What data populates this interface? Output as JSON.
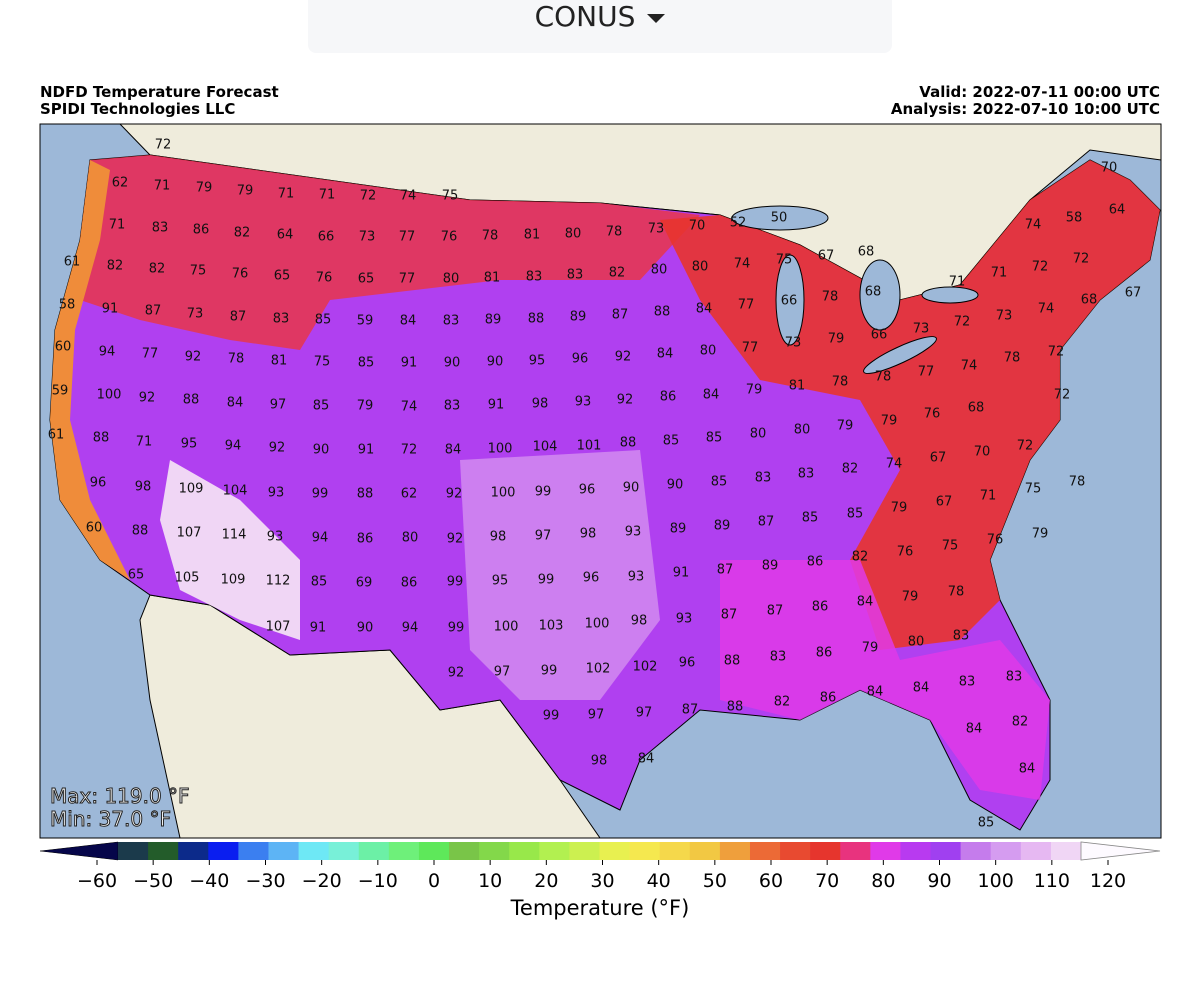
{
  "selector": {
    "label": "CONUS"
  },
  "header": {
    "title": "NDFD Temperature Forecast",
    "source": "SPIDI Technologies LLC",
    "valid": "Valid: 2022-07-11 00:00 UTC",
    "analysis": "Analysis: 2022-07-10 10:00 UTC"
  },
  "stats": {
    "max": "Max: 119.0 °F",
    "min": "Min: 37.0 °F"
  },
  "stations": [
    72,
    62,
    71,
    79,
    79,
    71,
    71,
    72,
    74,
    75,
    71,
    83,
    86,
    82,
    64,
    66,
    73,
    77,
    76,
    78,
    81,
    80,
    78,
    73,
    70,
    52,
    50,
    61,
    82,
    82,
    75,
    76,
    65,
    76,
    65,
    77,
    80,
    81,
    83,
    83,
    82,
    80,
    80,
    74,
    75,
    67,
    68,
    58,
    91,
    87,
    73,
    87,
    83,
    85,
    59,
    84,
    83,
    89,
    88,
    89,
    87,
    88,
    84,
    77,
    66,
    78,
    68,
    60,
    94,
    77,
    92,
    78,
    81,
    75,
    85,
    91,
    90,
    90,
    95,
    96,
    92,
    84,
    80,
    77,
    73,
    79,
    66,
    73,
    59,
    100,
    92,
    88,
    84,
    97,
    85,
    79,
    74,
    83,
    91,
    98,
    93,
    92,
    86,
    84,
    79,
    81,
    78,
    78,
    77,
    74,
    78,
    61,
    88,
    71,
    95,
    94,
    92,
    90,
    91,
    72,
    84,
    100,
    104,
    101,
    88,
    85,
    85,
    80,
    80,
    79,
    79,
    76,
    68,
    72,
    96,
    98,
    109,
    104,
    93,
    99,
    88,
    62,
    92,
    100,
    99,
    96,
    90,
    90,
    85,
    83,
    83,
    82,
    74,
    67,
    70,
    72,
    60,
    88,
    107,
    114,
    93,
    94,
    86,
    80,
    92,
    98,
    97,
    98,
    93,
    89,
    89,
    87,
    85,
    85,
    79,
    67,
    71,
    75,
    78,
    65,
    105,
    109,
    112,
    85,
    69,
    86,
    99,
    95,
    99,
    96,
    93,
    91,
    87,
    89,
    86,
    82,
    76,
    75,
    76,
    79,
    107,
    91,
    90,
    94,
    99,
    100,
    103,
    100,
    98,
    93,
    87,
    87,
    86,
    84,
    79,
    78,
    92,
    97,
    99,
    102,
    102,
    96,
    88,
    83,
    86,
    79,
    80,
    83,
    99,
    97,
    97,
    87,
    88,
    82,
    86,
    84,
    84,
    83,
    83,
    98,
    84,
    84,
    82,
    84,
    85,
    74,
    58,
    70,
    64,
    71,
    71,
    72,
    72,
    72,
    73,
    74,
    68,
    67,
    72
  ],
  "colorbar": {
    "label": "Temperature (°F)",
    "range": [
      -60,
      120
    ],
    "ticks": [
      {
        "value": -60,
        "label": "−60"
      },
      {
        "value": -50,
        "label": "−50"
      },
      {
        "value": -40,
        "label": "−40"
      },
      {
        "value": -30,
        "label": "−30"
      },
      {
        "value": -20,
        "label": "−20"
      },
      {
        "value": -10,
        "label": "−10"
      },
      0,
      10,
      20,
      30,
      40,
      50,
      60,
      70,
      80,
      90,
      100,
      110,
      120
    ],
    "colors": [
      "#06064a",
      "#1b3a4b",
      "#235c2a",
      "#0c2a8a",
      "#0a1ef0",
      "#3b7ff0",
      "#5db4f5",
      "#6ee8f5",
      "#78f0d8",
      "#6cf0a6",
      "#6ef07a",
      "#5ee85a",
      "#79c548",
      "#83d84a",
      "#98e84a",
      "#b2f050",
      "#ccf050",
      "#e8f050",
      "#f5e84f",
      "#f5d84b",
      "#f2c843",
      "#ef9f3c",
      "#ec6a36",
      "#e84a30",
      "#e6352d",
      "#e8337e",
      "#e03ae8",
      "#b83af0",
      "#a040f0",
      "#c57cec",
      "#d59cf0",
      "#e6b8f2",
      "#f0d6f5",
      "#fdfaff"
    ]
  }
}
